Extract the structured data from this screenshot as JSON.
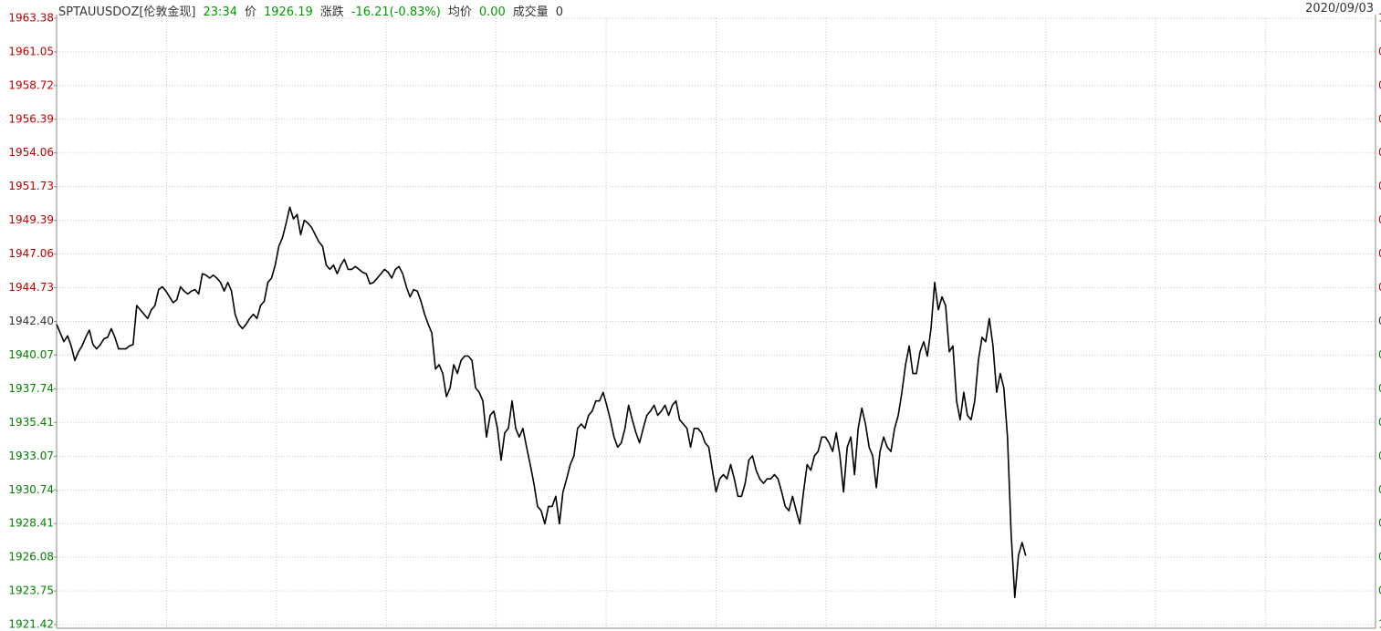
{
  "header": {
    "symbol": "SPTAUUSDOZ[伦敦金现]",
    "time": "23:34",
    "price_label": "价",
    "price": "1926.19",
    "change_label": "涨跌",
    "change": "-16.21(-0.83%)",
    "avg_label": "均价",
    "avg": "0.00",
    "volume_label": "成交量",
    "volume": "0",
    "date": "2020/09/03"
  },
  "chart_data": {
    "type": "line",
    "color": "#000000",
    "up_color": "#c00000",
    "down_color": "#008000",
    "flat_color": "#333333",
    "grid": true,
    "ylim": [
      1921.42,
      1963.38
    ],
    "yticks": [
      1963.38,
      1961.05,
      1958.72,
      1956.39,
      1954.06,
      1951.73,
      1949.39,
      1947.06,
      1944.73,
      {
        "value": 1942.4,
        "label": "1942.40"
      },
      1940.07,
      1937.74,
      1935.41,
      1933.07,
      1930.74,
      1928.41,
      1926.08,
      1923.75,
      1921.42
    ],
    "right_labels": [
      "1",
      "0",
      "0",
      "0",
      "0",
      "0",
      "0",
      "0",
      "0",
      "0",
      "0",
      "0",
      "0",
      "0",
      "0",
      "0",
      "0",
      "0",
      "1"
    ],
    "values": [
      1942.2,
      1941.6,
      1941.0,
      1941.4,
      1940.7,
      1939.7,
      1940.3,
      1940.7,
      1941.3,
      1941.8,
      1940.8,
      1940.5,
      1940.8,
      1941.2,
      1941.3,
      1941.9,
      1941.3,
      1940.5,
      1940.5,
      1940.5,
      1940.7,
      1940.8,
      1943.5,
      1943.2,
      1942.9,
      1942.6,
      1943.2,
      1943.5,
      1944.6,
      1944.8,
      1944.5,
      1944.1,
      1943.7,
      1943.9,
      1944.8,
      1944.5,
      1944.3,
      1944.5,
      1944.6,
      1944.3,
      1945.7,
      1945.6,
      1945.4,
      1945.6,
      1945.4,
      1945.1,
      1944.5,
      1945.1,
      1944.5,
      1942.9,
      1942.2,
      1941.9,
      1942.2,
      1942.6,
      1942.9,
      1942.6,
      1943.5,
      1943.8,
      1945.1,
      1945.4,
      1946.3,
      1947.6,
      1948.2,
      1949.2,
      1950.3,
      1949.5,
      1949.8,
      1948.4,
      1949.4,
      1949.2,
      1948.9,
      1948.4,
      1947.9,
      1947.6,
      1946.3,
      1946.0,
      1946.3,
      1945.7,
      1946.3,
      1946.7,
      1946.0,
      1946.0,
      1946.2,
      1946.0,
      1945.8,
      1945.7,
      1945.0,
      1945.1,
      1945.4,
      1945.7,
      1946.0,
      1945.8,
      1945.4,
      1946.0,
      1946.2,
      1945.7,
      1944.8,
      1944.1,
      1944.6,
      1944.5,
      1943.8,
      1942.9,
      1942.2,
      1941.6,
      1939.1,
      1939.4,
      1938.8,
      1937.2,
      1937.8,
      1939.4,
      1938.8,
      1939.7,
      1940.0,
      1940.0,
      1939.7,
      1937.8,
      1937.5,
      1936.9,
      1934.4,
      1935.9,
      1936.2,
      1935.0,
      1932.8,
      1934.7,
      1935.0,
      1936.9,
      1935.0,
      1934.4,
      1935.0,
      1933.7,
      1932.5,
      1931.2,
      1929.6,
      1929.3,
      1928.4,
      1929.6,
      1929.6,
      1930.3,
      1928.4,
      1930.6,
      1931.5,
      1932.5,
      1933.1,
      1935.0,
      1935.3,
      1935.0,
      1935.9,
      1936.2,
      1936.9,
      1936.9,
      1937.5,
      1936.6,
      1935.6,
      1934.4,
      1933.7,
      1934.0,
      1935.0,
      1936.6,
      1935.6,
      1934.7,
      1934.0,
      1935.0,
      1935.9,
      1936.2,
      1936.6,
      1935.9,
      1936.2,
      1936.6,
      1935.9,
      1936.6,
      1936.9,
      1935.6,
      1935.3,
      1935.0,
      1933.7,
      1935.0,
      1935.0,
      1934.7,
      1934.0,
      1933.7,
      1932.1,
      1930.6,
      1931.5,
      1931.8,
      1931.5,
      1932.5,
      1931.5,
      1930.3,
      1930.3,
      1931.2,
      1932.8,
      1933.1,
      1932.1,
      1931.5,
      1931.2,
      1931.5,
      1931.5,
      1931.8,
      1931.5,
      1930.6,
      1929.6,
      1929.3,
      1930.3,
      1929.3,
      1928.4,
      1930.6,
      1932.5,
      1932.1,
      1933.1,
      1933.4,
      1934.4,
      1934.4,
      1934.0,
      1933.4,
      1934.7,
      1933.1,
      1930.6,
      1933.7,
      1934.4,
      1931.8,
      1935.0,
      1936.4,
      1935.3,
      1933.7,
      1933.1,
      1930.9,
      1933.4,
      1934.4,
      1933.7,
      1933.4,
      1935.0,
      1935.9,
      1937.5,
      1939.4,
      1940.7,
      1938.8,
      1938.8,
      1940.3,
      1941.0,
      1940.0,
      1941.9,
      1945.1,
      1943.2,
      1944.1,
      1943.5,
      1940.3,
      1940.7,
      1936.9,
      1935.6,
      1937.5,
      1935.9,
      1935.6,
      1936.9,
      1939.7,
      1941.3,
      1941.0,
      1942.6,
      1940.7,
      1937.5,
      1938.8,
      1937.8,
      1934.4,
      1927.7,
      1923.3,
      1926.2,
      1927.1,
      1926.19
    ]
  }
}
